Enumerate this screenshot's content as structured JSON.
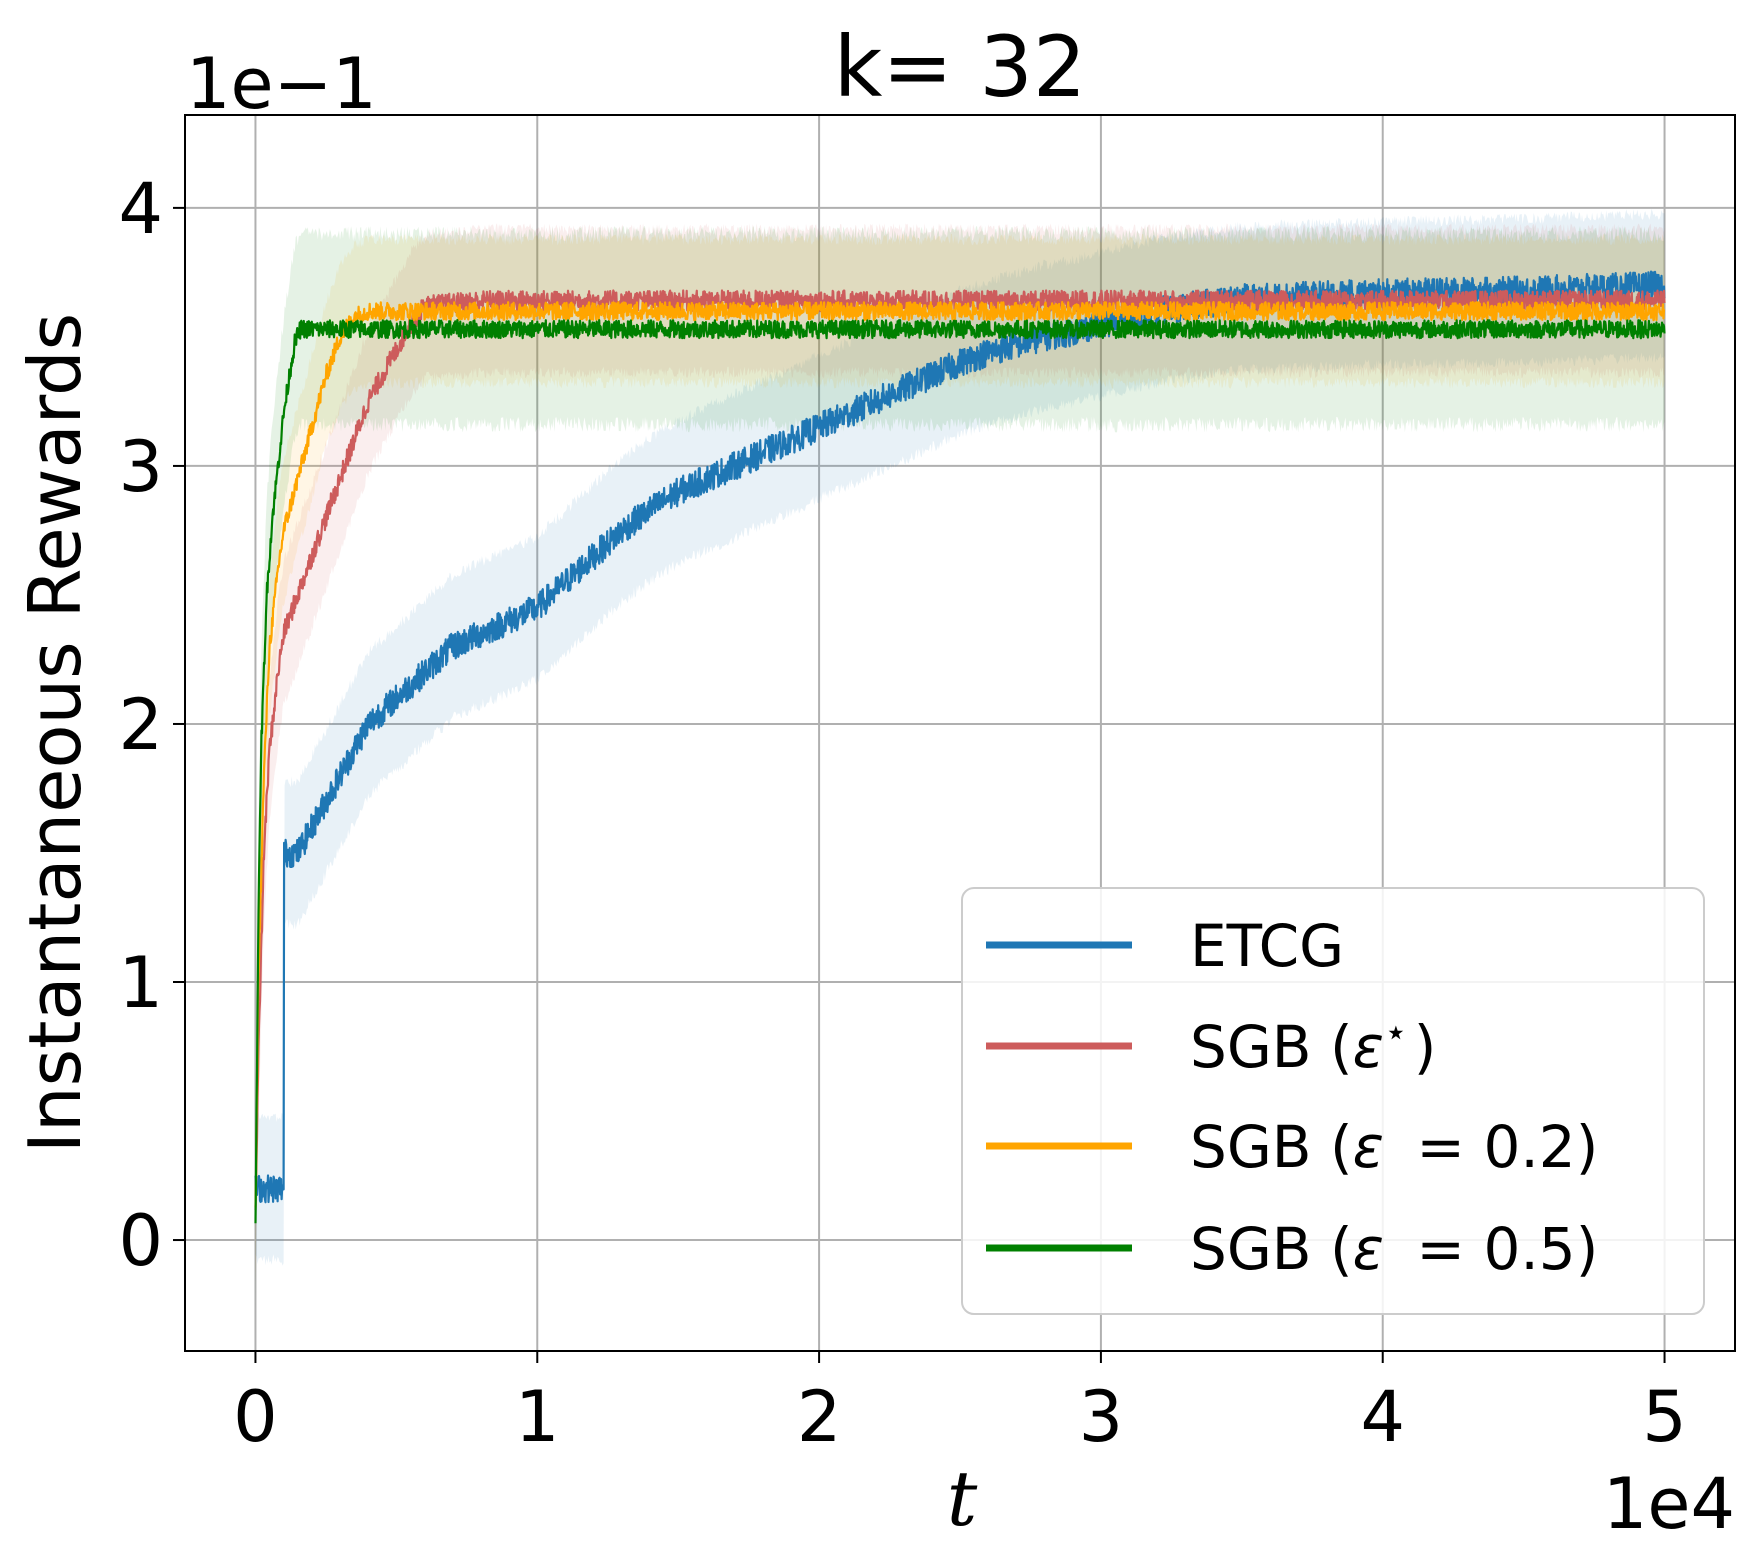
{
  "chart_data": {
    "type": "line",
    "title": "k= 32",
    "xlabel": "t",
    "ylabel": "Instantaneous Rewards",
    "x_offset_text": "1e4",
    "y_offset_text": "1e−1",
    "xlim": [
      -0.25,
      5.25
    ],
    "ylim": [
      -0.43,
      4.36
    ],
    "xticks": [
      0,
      1,
      2,
      3,
      4,
      5
    ],
    "xtick_labels": [
      "0",
      "1",
      "2",
      "3",
      "4",
      "5"
    ],
    "yticks": [
      0,
      1,
      2,
      3,
      4
    ],
    "ytick_labels": [
      "0",
      "1",
      "2",
      "3",
      "4"
    ],
    "grid": true,
    "legend_position": "lower-right",
    "series": [
      {
        "name": "ETCG",
        "color": "#1f77b4",
        "noise": 0.055,
        "band": 0.3,
        "x": [
          0,
          0.02,
          0.04,
          0.06,
          0.08,
          0.1,
          0.101,
          0.12,
          0.15,
          0.2,
          0.25,
          0.3,
          0.35,
          0.4,
          0.45,
          0.5,
          0.6,
          0.7,
          0.8,
          0.9,
          1.0,
          1.1,
          1.2,
          1.3,
          1.4,
          1.5,
          1.6,
          1.7,
          1.8,
          1.9,
          2.0,
          2.1,
          2.2,
          2.3,
          2.4,
          2.5,
          2.6,
          2.7,
          2.8,
          2.9,
          3.0,
          3.2,
          3.5,
          4.0,
          4.5,
          5.0
        ],
        "y": [
          0.2,
          0.2,
          0.2,
          0.2,
          0.2,
          0.2,
          1.5,
          1.5,
          1.5,
          1.6,
          1.7,
          1.8,
          1.9,
          2.0,
          2.05,
          2.1,
          2.2,
          2.3,
          2.35,
          2.4,
          2.45,
          2.55,
          2.65,
          2.75,
          2.83,
          2.9,
          2.95,
          3.0,
          3.05,
          3.1,
          3.15,
          3.2,
          3.25,
          3.3,
          3.35,
          3.4,
          3.44,
          3.47,
          3.5,
          3.52,
          3.55,
          3.6,
          3.65,
          3.67,
          3.68,
          3.7
        ]
      },
      {
        "name": "SGB (ε⋆)",
        "legend_main": "SGB (",
        "legend_eps": "ε",
        "legend_sup": "⋆",
        "legend_rest": ")",
        "color": "#cd5c5c",
        "noise": 0.04,
        "band": 0.3,
        "x": [
          0,
          0.01,
          0.03,
          0.05,
          0.08,
          0.1,
          0.15,
          0.2,
          0.25,
          0.3,
          0.35,
          0.4,
          0.45,
          0.5,
          0.55,
          0.6,
          0.8,
          1.0,
          2.0,
          3.0,
          4.0,
          5.0
        ],
        "y": [
          0.1,
          0.7,
          1.5,
          1.9,
          2.2,
          2.35,
          2.5,
          2.65,
          2.8,
          2.95,
          3.1,
          3.25,
          3.35,
          3.45,
          3.55,
          3.62,
          3.64,
          3.64,
          3.64,
          3.64,
          3.64,
          3.64
        ]
      },
      {
        "name": "SGB (ε = 0.2)",
        "legend_main": "SGB (",
        "legend_eps": "ε",
        "legend_sup": "",
        "legend_rest": " = 0.2)",
        "color": "#ffa500",
        "noise": 0.035,
        "band": 0.3,
        "x": [
          0,
          0.01,
          0.03,
          0.05,
          0.08,
          0.1,
          0.15,
          0.2,
          0.25,
          0.3,
          0.35,
          0.4,
          0.6,
          1.0,
          2.0,
          3.0,
          4.0,
          5.0
        ],
        "y": [
          0.1,
          1.0,
          1.8,
          2.3,
          2.6,
          2.75,
          2.95,
          3.15,
          3.35,
          3.5,
          3.58,
          3.6,
          3.6,
          3.6,
          3.6,
          3.6,
          3.6,
          3.6
        ]
      },
      {
        "name": "SGB (ε = 0.5)",
        "legend_main": "SGB (",
        "legend_eps": "ε",
        "legend_sup": "",
        "legend_rest": " = 0.5)",
        "color": "#008000",
        "noise": 0.035,
        "band": 0.4,
        "x": [
          0,
          0.01,
          0.02,
          0.04,
          0.06,
          0.08,
          0.1,
          0.12,
          0.14,
          0.16,
          0.2,
          0.5,
          1.0,
          2.0,
          3.0,
          4.0,
          5.0
        ],
        "y": [
          0.1,
          1.2,
          1.9,
          2.5,
          2.8,
          3.0,
          3.2,
          3.35,
          3.48,
          3.53,
          3.53,
          3.53,
          3.53,
          3.53,
          3.53,
          3.53,
          3.53
        ]
      }
    ]
  }
}
